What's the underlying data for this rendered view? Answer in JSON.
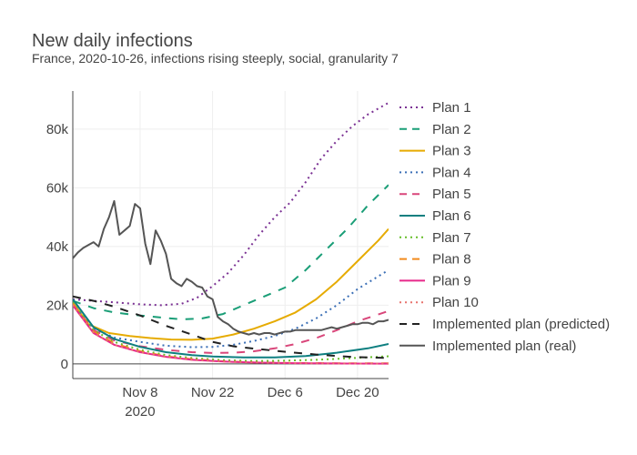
{
  "chart_data": {
    "type": "line",
    "title": "New daily infections",
    "subtitle": "France, 2020-10-26, infections rising steeply, social, granularity 7",
    "xlabel": "",
    "ylabel": "",
    "xlim": [
      "2020-10-26",
      "2020-12-26"
    ],
    "ylim": [
      -5000,
      93000
    ],
    "yticks": [
      0,
      20000,
      40000,
      60000,
      80000
    ],
    "ytick_labels": [
      "0",
      "20k",
      "40k",
      "60k",
      "80k"
    ],
    "xticks": [
      "2020-11-08",
      "2020-11-22",
      "2020-12-06",
      "2020-12-20"
    ],
    "xtick_labels": [
      "Nov 8",
      "Nov 22",
      "Dec 6",
      "Dec 20"
    ],
    "xtick_year": "2020",
    "grid": true,
    "legend_position": "right",
    "series": [
      {
        "name": "Plan 1",
        "color": "#7b3294",
        "dash": "dot",
        "points": [
          [
            "2020-10-26",
            22000
          ],
          [
            "2020-10-30",
            21500
          ],
          [
            "2020-11-03",
            21000
          ],
          [
            "2020-11-08",
            20300
          ],
          [
            "2020-11-12",
            20000
          ],
          [
            "2020-11-16",
            20500
          ],
          [
            "2020-11-19",
            22500
          ],
          [
            "2020-11-22",
            26500
          ],
          [
            "2020-11-25",
            31000
          ],
          [
            "2020-11-28",
            37000
          ],
          [
            "2020-12-01",
            44000
          ],
          [
            "2020-12-04",
            50000
          ],
          [
            "2020-12-07",
            55000
          ],
          [
            "2020-12-10",
            62000
          ],
          [
            "2020-12-13",
            70000
          ],
          [
            "2020-12-16",
            76000
          ],
          [
            "2020-12-19",
            81000
          ],
          [
            "2020-12-22",
            85000
          ],
          [
            "2020-12-26",
            89000
          ]
        ]
      },
      {
        "name": "Plan 2",
        "color": "#1a9e77",
        "dash": "dash",
        "points": [
          [
            "2020-10-26",
            21500
          ],
          [
            "2020-10-30",
            19000
          ],
          [
            "2020-11-03",
            17500
          ],
          [
            "2020-11-08",
            16500
          ],
          [
            "2020-11-12",
            15800
          ],
          [
            "2020-11-16",
            15200
          ],
          [
            "2020-11-20",
            15500
          ],
          [
            "2020-11-24",
            17000
          ],
          [
            "2020-11-28",
            20000
          ],
          [
            "2020-12-02",
            23000
          ],
          [
            "2020-12-06",
            26000
          ],
          [
            "2020-12-10",
            32000
          ],
          [
            "2020-12-14",
            39000
          ],
          [
            "2020-12-18",
            46000
          ],
          [
            "2020-12-22",
            54000
          ],
          [
            "2020-12-26",
            61000
          ]
        ]
      },
      {
        "name": "Plan 3",
        "color": "#e6ab02",
        "dash": "solid",
        "points": [
          [
            "2020-10-26",
            21000
          ],
          [
            "2020-10-29",
            13500
          ],
          [
            "2020-11-02",
            10500
          ],
          [
            "2020-11-06",
            9500
          ],
          [
            "2020-11-10",
            8800
          ],
          [
            "2020-11-14",
            8300
          ],
          [
            "2020-11-18",
            8200
          ],
          [
            "2020-11-22",
            8600
          ],
          [
            "2020-11-26",
            10000
          ],
          [
            "2020-11-30",
            12000
          ],
          [
            "2020-12-04",
            14500
          ],
          [
            "2020-12-08",
            17500
          ],
          [
            "2020-12-12",
            22000
          ],
          [
            "2020-12-16",
            28000
          ],
          [
            "2020-12-20",
            35000
          ],
          [
            "2020-12-24",
            42000
          ],
          [
            "2020-12-26",
            46000
          ]
        ]
      },
      {
        "name": "Plan 4",
        "color": "#3b6fb6",
        "dash": "dot",
        "points": [
          [
            "2020-10-26",
            20500
          ],
          [
            "2020-10-30",
            12000
          ],
          [
            "2020-11-03",
            9000
          ],
          [
            "2020-11-08",
            7500
          ],
          [
            "2020-11-13",
            6200
          ],
          [
            "2020-11-18",
            5700
          ],
          [
            "2020-11-22",
            5800
          ],
          [
            "2020-11-26",
            6500
          ],
          [
            "2020-11-30",
            7800
          ],
          [
            "2020-12-04",
            9500
          ],
          [
            "2020-12-08",
            12000
          ],
          [
            "2020-12-12",
            15500
          ],
          [
            "2020-12-16",
            20000
          ],
          [
            "2020-12-20",
            25500
          ],
          [
            "2020-12-26",
            32000
          ]
        ]
      },
      {
        "name": "Plan 5",
        "color": "#d9467a",
        "dash": "dash",
        "points": [
          [
            "2020-10-26",
            20500
          ],
          [
            "2020-10-30",
            11500
          ],
          [
            "2020-11-03",
            8000
          ],
          [
            "2020-11-08",
            6000
          ],
          [
            "2020-11-13",
            4800
          ],
          [
            "2020-11-18",
            4000
          ],
          [
            "2020-11-22",
            3700
          ],
          [
            "2020-11-26",
            3800
          ],
          [
            "2020-11-30",
            4300
          ],
          [
            "2020-12-04",
            5300
          ],
          [
            "2020-12-08",
            6800
          ],
          [
            "2020-12-12",
            8800
          ],
          [
            "2020-12-16",
            11500
          ],
          [
            "2020-12-20",
            14500
          ],
          [
            "2020-12-26",
            18000
          ]
        ]
      },
      {
        "name": "Plan 6",
        "color": "#0e7f80",
        "dash": "solid",
        "points": [
          [
            "2020-10-26",
            22000
          ],
          [
            "2020-10-30",
            12500
          ],
          [
            "2020-11-03",
            8500
          ],
          [
            "2020-11-08",
            5800
          ],
          [
            "2020-11-13",
            4000
          ],
          [
            "2020-11-18",
            3000
          ],
          [
            "2020-11-22",
            2500
          ],
          [
            "2020-11-28",
            2200
          ],
          [
            "2020-12-04",
            2200
          ],
          [
            "2020-12-10",
            2700
          ],
          [
            "2020-12-16",
            3800
          ],
          [
            "2020-12-22",
            5300
          ],
          [
            "2020-12-26",
            6800
          ]
        ]
      },
      {
        "name": "Plan 7",
        "color": "#66bd28",
        "dash": "dot",
        "points": [
          [
            "2020-10-26",
            21000
          ],
          [
            "2020-10-30",
            11500
          ],
          [
            "2020-11-03",
            7500
          ],
          [
            "2020-11-08",
            4800
          ],
          [
            "2020-11-13",
            3000
          ],
          [
            "2020-11-18",
            2000
          ],
          [
            "2020-11-24",
            1300
          ],
          [
            "2020-11-30",
            1000
          ],
          [
            "2020-12-06",
            1100
          ],
          [
            "2020-12-12",
            1400
          ],
          [
            "2020-12-18",
            1900
          ],
          [
            "2020-12-26",
            2600
          ]
        ]
      },
      {
        "name": "Plan 8",
        "color": "#f28a1c",
        "dash": "dash",
        "points": [
          [
            "2020-10-26",
            20500
          ],
          [
            "2020-10-30",
            11000
          ],
          [
            "2020-11-03",
            7000
          ],
          [
            "2020-11-08",
            4300
          ],
          [
            "2020-11-13",
            2600
          ],
          [
            "2020-11-18",
            1600
          ],
          [
            "2020-11-24",
            900
          ],
          [
            "2020-11-30",
            500
          ],
          [
            "2020-12-08",
            300
          ],
          [
            "2020-12-16",
            200
          ],
          [
            "2020-12-26",
            200
          ]
        ]
      },
      {
        "name": "Plan 9",
        "color": "#e7298a",
        "dash": "solid",
        "points": [
          [
            "2020-10-26",
            20000
          ],
          [
            "2020-10-30",
            10500
          ],
          [
            "2020-11-03",
            6500
          ],
          [
            "2020-11-08",
            4000
          ],
          [
            "2020-11-13",
            2400
          ],
          [
            "2020-11-18",
            1400
          ],
          [
            "2020-11-24",
            800
          ],
          [
            "2020-11-30",
            450
          ],
          [
            "2020-12-08",
            250
          ],
          [
            "2020-12-16",
            150
          ],
          [
            "2020-12-26",
            100
          ]
        ]
      },
      {
        "name": "Plan 10",
        "color": "#e8736e",
        "dash": "dot",
        "points": [
          [
            "2020-10-26",
            20000
          ],
          [
            "2020-10-30",
            10500
          ],
          [
            "2020-11-03",
            6500
          ],
          [
            "2020-11-08",
            4000
          ],
          [
            "2020-11-13",
            2400
          ],
          [
            "2020-11-18",
            1400
          ],
          [
            "2020-11-24",
            800
          ],
          [
            "2020-11-30",
            450
          ],
          [
            "2020-12-08",
            250
          ],
          [
            "2020-12-16",
            150
          ],
          [
            "2020-12-26",
            100
          ]
        ]
      },
      {
        "name": "Implemented plan (predicted)",
        "color": "#222222",
        "dash": "dash",
        "points": [
          [
            "2020-10-26",
            23000
          ],
          [
            "2020-10-30",
            21500
          ],
          [
            "2020-11-03",
            19500
          ],
          [
            "2020-11-08",
            16500
          ],
          [
            "2020-11-13",
            13000
          ],
          [
            "2020-11-18",
            10000
          ],
          [
            "2020-11-22",
            7500
          ],
          [
            "2020-11-26",
            6000
          ],
          [
            "2020-11-30",
            5200
          ],
          [
            "2020-12-04",
            4500
          ],
          [
            "2020-12-08",
            3800
          ],
          [
            "2020-12-12",
            3200
          ],
          [
            "2020-12-16",
            2700
          ],
          [
            "2020-12-20",
            2300
          ],
          [
            "2020-12-26",
            2000
          ]
        ]
      },
      {
        "name": "Implemented plan (real)",
        "color": "#555555",
        "dash": "solid",
        "points": [
          [
            "2020-10-26",
            36000
          ],
          [
            "2020-10-27",
            38000
          ],
          [
            "2020-10-28",
            39500
          ],
          [
            "2020-10-29",
            40500
          ],
          [
            "2020-10-30",
            41500
          ],
          [
            "2020-10-31",
            40000
          ],
          [
            "2020-11-01",
            46000
          ],
          [
            "2020-11-02",
            50000
          ],
          [
            "2020-11-03",
            55500
          ],
          [
            "2020-11-04",
            44000
          ],
          [
            "2020-11-05",
            45500
          ],
          [
            "2020-11-06",
            47000
          ],
          [
            "2020-11-07",
            54500
          ],
          [
            "2020-11-08",
            53000
          ],
          [
            "2020-11-09",
            41000
          ],
          [
            "2020-11-10",
            34000
          ],
          [
            "2020-11-11",
            45500
          ],
          [
            "2020-11-12",
            42000
          ],
          [
            "2020-11-13",
            37500
          ],
          [
            "2020-11-14",
            29000
          ],
          [
            "2020-11-15",
            27500
          ],
          [
            "2020-11-16",
            26500
          ],
          [
            "2020-11-17",
            29000
          ],
          [
            "2020-11-18",
            28000
          ],
          [
            "2020-11-19",
            26500
          ],
          [
            "2020-11-20",
            26000
          ],
          [
            "2020-11-21",
            23000
          ],
          [
            "2020-11-22",
            22000
          ],
          [
            "2020-11-23",
            16000
          ],
          [
            "2020-11-24",
            14500
          ],
          [
            "2020-11-25",
            13500
          ],
          [
            "2020-11-26",
            12000
          ],
          [
            "2020-11-27",
            11000
          ],
          [
            "2020-11-28",
            10500
          ],
          [
            "2020-11-29",
            10000
          ],
          [
            "2020-11-30",
            10500
          ],
          [
            "2020-12-01",
            10000
          ],
          [
            "2020-12-02",
            10500
          ],
          [
            "2020-12-03",
            10500
          ],
          [
            "2020-12-04",
            10000
          ],
          [
            "2020-12-05",
            10500
          ],
          [
            "2020-12-06",
            11000
          ],
          [
            "2020-12-07",
            11000
          ],
          [
            "2020-12-08",
            11500
          ],
          [
            "2020-12-09",
            11500
          ],
          [
            "2020-12-10",
            11500
          ],
          [
            "2020-12-11",
            11500
          ],
          [
            "2020-12-12",
            11500
          ],
          [
            "2020-12-13",
            11500
          ],
          [
            "2020-12-14",
            12000
          ],
          [
            "2020-12-15",
            12500
          ],
          [
            "2020-12-16",
            12000
          ],
          [
            "2020-12-17",
            12500
          ],
          [
            "2020-12-18",
            13000
          ],
          [
            "2020-12-19",
            13500
          ],
          [
            "2020-12-20",
            13500
          ],
          [
            "2020-12-21",
            14000
          ],
          [
            "2020-12-22",
            14000
          ],
          [
            "2020-12-23",
            13500
          ],
          [
            "2020-12-24",
            14500
          ],
          [
            "2020-12-25",
            14500
          ],
          [
            "2020-12-26",
            15000
          ]
        ]
      }
    ]
  }
}
